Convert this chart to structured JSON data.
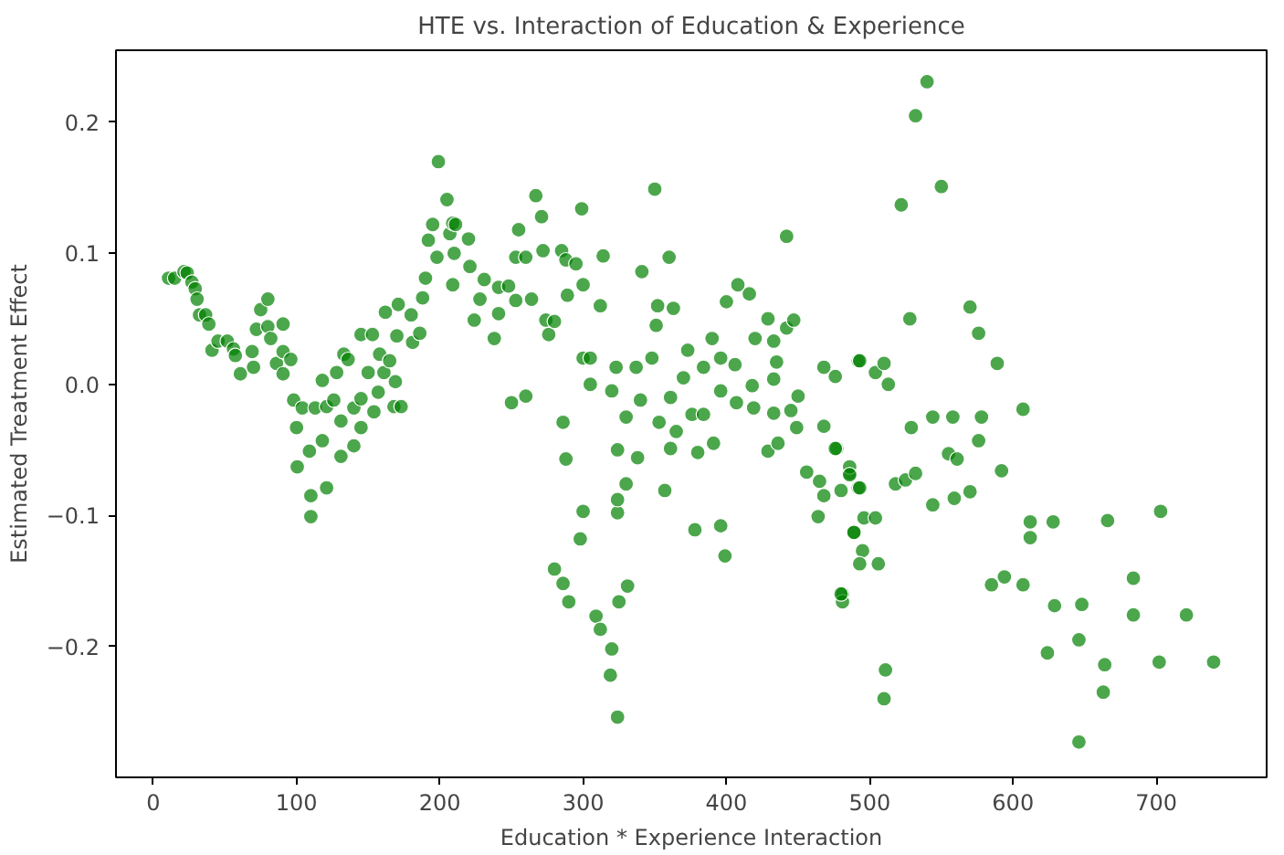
{
  "chart_data": {
    "type": "scatter",
    "title": "HTE vs. Interaction of Education & Experience",
    "xlabel": "Education * Experience Interaction",
    "ylabel": "Estimated Treatment Effect",
    "xlim": [
      -26,
      777
    ],
    "ylim": [
      -0.3,
      0.255
    ],
    "xticks": [
      0,
      100,
      200,
      300,
      400,
      500,
      600,
      700
    ],
    "yticks": [
      {
        "value": -0.2,
        "label": "−0.2"
      },
      {
        "value": -0.1,
        "label": "−0.1"
      },
      {
        "value": 0.0,
        "label": "0.0"
      },
      {
        "value": 0.1,
        "label": "0.1"
      },
      {
        "value": 0.2,
        "label": "0.2"
      }
    ],
    "grid": false,
    "marker": "circle",
    "color": "#008000",
    "x": [
      10.7,
      15,
      21.5,
      23.7,
      27,
      29.3,
      30.6,
      32.3,
      36.6,
      38.8,
      41,
      45.2,
      51.7,
      56,
      57.3,
      60.8,
      69,
      70,
      72,
      75,
      80,
      80,
      82,
      86,
      90.6,
      90.6,
      90.6,
      96,
      98,
      100,
      100.5,
      104,
      109,
      110,
      110,
      113,
      118,
      118,
      121,
      121,
      126,
      128,
      131,
      131,
      133,
      136,
      140,
      140,
      145,
      145,
      145,
      150,
      153,
      154,
      157,
      158,
      161,
      162,
      165,
      168,
      169,
      171,
      170,
      173,
      180,
      181,
      186,
      188,
      190,
      192,
      195,
      198,
      199,
      205,
      207,
      209,
      209,
      210,
      220,
      221,
      224,
      228,
      231,
      211,
      238,
      241,
      241,
      248,
      250,
      253,
      255,
      253,
      260,
      260,
      264,
      267,
      271,
      272,
      276,
      274,
      280,
      286,
      285,
      288,
      289,
      288,
      295,
      299,
      300,
      300,
      305,
      305,
      312,
      314,
      320,
      323,
      324,
      324,
      324,
      331,
      325,
      330,
      337,
      338,
      330,
      340,
      341,
      348,
      350,
      351,
      352,
      353,
      357,
      360,
      361,
      361,
      363,
      365,
      370,
      373,
      376,
      378,
      380,
      384,
      384,
      390,
      391,
      396,
      396,
      399,
      396,
      400,
      406,
      408,
      407,
      416,
      418,
      419,
      420,
      429,
      429,
      433,
      433,
      433,
      435,
      436,
      442,
      442,
      447,
      450,
      445,
      449,
      468,
      468,
      476,
      477,
      464,
      456,
      465,
      468,
      481,
      481,
      486,
      489,
      492,
      492,
      486,
      280,
      286,
      290,
      298,
      300,
      309,
      312,
      320,
      319,
      324,
      493,
      504,
      510,
      513,
      476,
      486,
      480,
      493,
      489,
      495,
      493,
      506,
      496,
      504,
      480,
      511,
      510,
      518,
      525,
      532,
      528,
      522,
      532,
      540,
      550,
      529,
      544,
      558,
      578,
      576,
      555,
      561,
      544,
      559,
      570,
      592,
      570,
      576,
      589,
      607,
      612,
      612,
      628,
      666,
      703,
      585,
      594,
      607,
      629,
      648,
      684,
      684,
      721,
      740,
      702,
      664,
      663,
      646,
      624,
      646
    ],
    "values": [
      0.081,
      0.081,
      0.086,
      0.085,
      0.078,
      0.073,
      0.065,
      0.053,
      0.053,
      0.046,
      0.026,
      0.033,
      0.033,
      0.027,
      0.022,
      0.008,
      0.025,
      0.013,
      0.042,
      0.057,
      0.065,
      0.044,
      0.035,
      0.016,
      0.046,
      0.025,
      0.008,
      0.019,
      -0.012,
      -0.033,
      -0.063,
      -0.018,
      -0.051,
      -0.085,
      -0.101,
      -0.018,
      -0.043,
      0.003,
      -0.017,
      -0.079,
      -0.012,
      0.009,
      -0.055,
      -0.028,
      0.023,
      0.019,
      -0.018,
      -0.047,
      0.038,
      -0.033,
      -0.011,
      0.009,
      0.038,
      -0.021,
      -0.006,
      0.023,
      0.009,
      0.055,
      0.018,
      -0.017,
      0.002,
      0.061,
      0.037,
      -0.017,
      0.053,
      0.032,
      0.039,
      0.066,
      0.081,
      0.11,
      0.122,
      0.097,
      0.17,
      0.141,
      0.115,
      0.123,
      0.076,
      0.1,
      0.111,
      0.09,
      0.049,
      0.065,
      0.08,
      0.122,
      0.035,
      0.054,
      0.074,
      0.075,
      -0.014,
      0.064,
      0.118,
      0.097,
      0.097,
      -0.009,
      0.065,
      0.144,
      0.128,
      0.102,
      0.038,
      0.049,
      0.048,
      -0.029,
      0.102,
      0.095,
      0.068,
      -0.057,
      0.092,
      0.134,
      0.076,
      0.02,
      0.02,
      0.0,
      0.06,
      0.098,
      -0.005,
      0.013,
      -0.05,
      -0.098,
      -0.088,
      -0.154,
      -0.166,
      -0.025,
      0.013,
      -0.056,
      -0.076,
      -0.012,
      0.086,
      0.02,
      0.149,
      0.045,
      0.06,
      -0.029,
      -0.081,
      0.097,
      -0.049,
      -0.01,
      0.058,
      -0.036,
      0.005,
      0.026,
      -0.023,
      -0.111,
      -0.052,
      0.013,
      -0.023,
      0.035,
      -0.045,
      -0.108,
      0.02,
      -0.131,
      -0.005,
      0.063,
      0.015,
      0.076,
      -0.014,
      0.069,
      -0.001,
      -0.018,
      0.035,
      0.05,
      -0.051,
      0.033,
      0.004,
      -0.022,
      0.017,
      -0.045,
      0.113,
      0.043,
      0.049,
      -0.009,
      -0.02,
      -0.033,
      0.013,
      -0.032,
      0.006,
      -0.049,
      -0.101,
      -0.067,
      -0.074,
      -0.085,
      -0.16,
      -0.166,
      -0.068,
      -0.113,
      -0.079,
      0.018,
      -0.063,
      -0.141,
      -0.152,
      -0.166,
      -0.118,
      -0.097,
      -0.177,
      -0.187,
      -0.202,
      -0.222,
      -0.254,
      0.018,
      0.009,
      0.016,
      0.0,
      -0.049,
      -0.069,
      -0.081,
      -0.079,
      -0.113,
      -0.127,
      -0.137,
      -0.137,
      -0.102,
      -0.102,
      -0.16,
      -0.218,
      -0.24,
      -0.076,
      -0.073,
      -0.068,
      0.05,
      0.137,
      0.205,
      0.231,
      0.151,
      -0.033,
      -0.025,
      -0.025,
      -0.025,
      -0.043,
      -0.053,
      -0.057,
      -0.092,
      -0.087,
      -0.082,
      -0.066,
      0.059,
      0.039,
      0.016,
      -0.019,
      -0.105,
      -0.117,
      -0.105,
      -0.104,
      -0.097,
      -0.153,
      -0.147,
      -0.153,
      -0.169,
      -0.168,
      -0.148,
      -0.176,
      -0.176,
      -0.212,
      -0.212,
      -0.214,
      -0.235,
      -0.195,
      -0.205,
      -0.273
    ]
  }
}
